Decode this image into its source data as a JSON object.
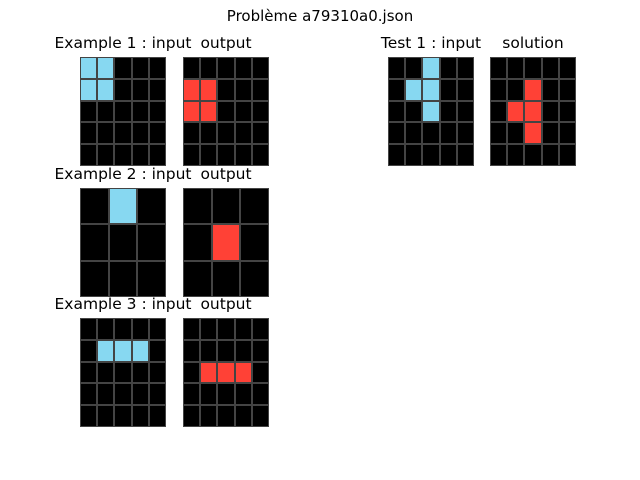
{
  "title": "Problème a79310a0.json",
  "palette": {
    "0": "#000000",
    "8": "#87d8f1",
    "2": "#ff4136"
  },
  "panels": [
    {
      "id": "example-1-input",
      "label": "Example 1 : input",
      "grid": [
        [
          8,
          8,
          0,
          0,
          0
        ],
        [
          8,
          8,
          0,
          0,
          0
        ],
        [
          0,
          0,
          0,
          0,
          0
        ],
        [
          0,
          0,
          0,
          0,
          0
        ],
        [
          0,
          0,
          0,
          0,
          0
        ]
      ]
    },
    {
      "id": "example-1-output",
      "label": "output",
      "grid": [
        [
          0,
          0,
          0,
          0,
          0
        ],
        [
          2,
          2,
          0,
          0,
          0
        ],
        [
          2,
          2,
          0,
          0,
          0
        ],
        [
          0,
          0,
          0,
          0,
          0
        ],
        [
          0,
          0,
          0,
          0,
          0
        ]
      ]
    },
    {
      "id": "test-1-input",
      "label": "Test 1 : input",
      "grid": [
        [
          0,
          0,
          8,
          0,
          0
        ],
        [
          0,
          8,
          8,
          0,
          0
        ],
        [
          0,
          0,
          8,
          0,
          0
        ],
        [
          0,
          0,
          0,
          0,
          0
        ],
        [
          0,
          0,
          0,
          0,
          0
        ]
      ]
    },
    {
      "id": "test-1-solution",
      "label": "solution",
      "grid": [
        [
          0,
          0,
          0,
          0,
          0
        ],
        [
          0,
          0,
          2,
          0,
          0
        ],
        [
          0,
          2,
          2,
          0,
          0
        ],
        [
          0,
          0,
          2,
          0,
          0
        ],
        [
          0,
          0,
          0,
          0,
          0
        ]
      ]
    },
    {
      "id": "example-2-input",
      "label": "Example 2 : input",
      "grid": [
        [
          0,
          8,
          0
        ],
        [
          0,
          0,
          0
        ],
        [
          0,
          0,
          0
        ]
      ]
    },
    {
      "id": "example-2-output",
      "label": "output",
      "grid": [
        [
          0,
          0,
          0
        ],
        [
          0,
          2,
          0
        ],
        [
          0,
          0,
          0
        ]
      ]
    },
    {
      "id": "example-3-input",
      "label": "Example 3 : input",
      "grid": [
        [
          0,
          0,
          0,
          0,
          0
        ],
        [
          0,
          8,
          8,
          8,
          0
        ],
        [
          0,
          0,
          0,
          0,
          0
        ],
        [
          0,
          0,
          0,
          0,
          0
        ],
        [
          0,
          0,
          0,
          0,
          0
        ]
      ]
    },
    {
      "id": "example-3-output",
      "label": "output",
      "grid": [
        [
          0,
          0,
          0,
          0,
          0
        ],
        [
          0,
          0,
          0,
          0,
          0
        ],
        [
          0,
          2,
          2,
          2,
          0
        ],
        [
          0,
          0,
          0,
          0,
          0
        ],
        [
          0,
          0,
          0,
          0,
          0
        ]
      ]
    }
  ]
}
